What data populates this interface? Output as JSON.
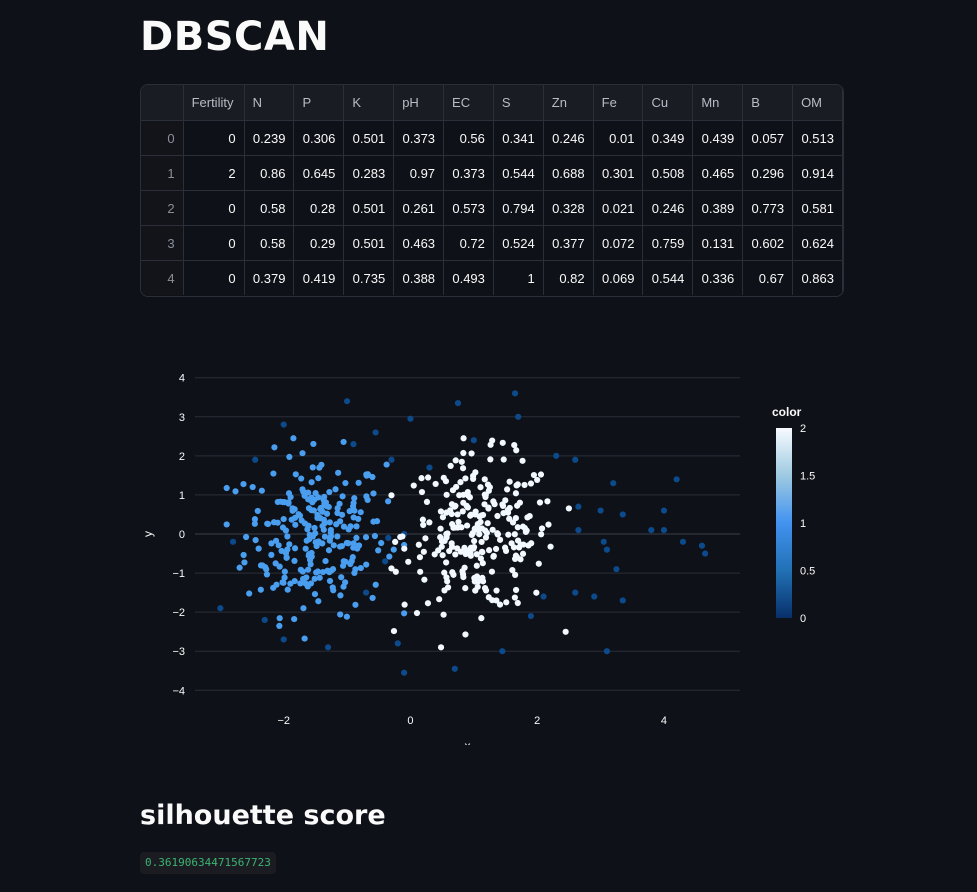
{
  "page": {
    "title": "DBSCAN"
  },
  "table": {
    "columns": [
      "",
      "Fertility",
      "N",
      "P",
      "K",
      "pH",
      "EC",
      "S",
      "Zn",
      "Fe",
      "Cu",
      "Mn",
      "B",
      "OM"
    ],
    "rows": [
      [
        "0",
        "0",
        "0.239",
        "0.306",
        "0.501",
        "0.373",
        "0.56",
        "0.341",
        "0.246",
        "0.01",
        "0.349",
        "0.439",
        "0.057",
        "0.513"
      ],
      [
        "1",
        "2",
        "0.86",
        "0.645",
        "0.283",
        "0.97",
        "0.373",
        "0.544",
        "0.688",
        "0.301",
        "0.508",
        "0.465",
        "0.296",
        "0.914"
      ],
      [
        "2",
        "0",
        "0.58",
        "0.28",
        "0.501",
        "0.261",
        "0.573",
        "0.794",
        "0.328",
        "0.021",
        "0.246",
        "0.389",
        "0.773",
        "0.581"
      ],
      [
        "3",
        "0",
        "0.58",
        "0.29",
        "0.501",
        "0.463",
        "0.72",
        "0.524",
        "0.377",
        "0.072",
        "0.759",
        "0.131",
        "0.602",
        "0.624"
      ],
      [
        "4",
        "0",
        "0.379",
        "0.419",
        "0.735",
        "0.388",
        "0.493",
        "1",
        "0.82",
        "0.069",
        "0.544",
        "0.336",
        "0.67",
        "0.863"
      ]
    ]
  },
  "chart_data": {
    "type": "scatter",
    "xlabel": "x",
    "ylabel": "y",
    "xlim": [
      -3.4,
      5.2
    ],
    "ylim": [
      -4.3,
      4.3
    ],
    "x_ticks": [
      -2,
      0,
      2,
      4
    ],
    "y_ticks": [
      -4,
      -3,
      -2,
      -1,
      0,
      1,
      2,
      3,
      4
    ],
    "grid": true,
    "colorbar": {
      "title": "color",
      "range": [
        0,
        2
      ],
      "ticks": [
        0,
        0.5,
        1,
        1.5,
        2
      ],
      "colors": [
        "#08306b",
        "#2171b5",
        "#4292f0",
        "#9ecae1",
        "#f7fbff"
      ]
    },
    "clusters": [
      {
        "label": 1,
        "color": "#4a9ef0",
        "center": [
          -1.5,
          0.0
        ],
        "spread": [
          0.55,
          1.2
        ]
      },
      {
        "label": 2,
        "color": "#f2f8ff",
        "center": [
          1.1,
          0.0
        ],
        "spread": [
          0.6,
          1.15
        ]
      },
      {
        "label": 0,
        "color": "#0d4a8c",
        "note_points": "outliers"
      }
    ],
    "outliers": [
      [
        -3.0,
        -1.9
      ],
      [
        -2.8,
        -0.2
      ],
      [
        -2.45,
        1.9
      ],
      [
        -2.3,
        -2.2
      ],
      [
        -2.0,
        2.8
      ],
      [
        -2.0,
        -2.7
      ],
      [
        -1.3,
        -2.9
      ],
      [
        -1.0,
        3.4
      ],
      [
        -0.7,
        -1.5
      ],
      [
        -0.9,
        2.3
      ],
      [
        -0.55,
        2.6
      ],
      [
        -0.3,
        1.9
      ],
      [
        -0.1,
        0.0
      ],
      [
        -0.4,
        -0.7
      ],
      [
        -0.2,
        -2.8
      ],
      [
        0.0,
        2.95
      ],
      [
        -0.1,
        -3.55
      ],
      [
        0.3,
        1.7
      ],
      [
        0.7,
        -3.45
      ],
      [
        0.75,
        3.35
      ],
      [
        1.0,
        2.4
      ],
      [
        1.45,
        -3.0
      ],
      [
        1.65,
        3.6
      ],
      [
        1.7,
        3.0
      ],
      [
        1.9,
        -2.1
      ],
      [
        2.1,
        -1.6
      ],
      [
        2.3,
        2.0
      ],
      [
        2.6,
        1.9
      ],
      [
        2.6,
        -1.5
      ],
      [
        2.65,
        0.1
      ],
      [
        2.65,
        0.7
      ],
      [
        2.9,
        -1.6
      ],
      [
        3.0,
        0.6
      ],
      [
        3.05,
        -0.2
      ],
      [
        3.1,
        -0.4
      ],
      [
        3.1,
        -3.0
      ],
      [
        3.2,
        1.3
      ],
      [
        3.25,
        -0.9
      ],
      [
        3.35,
        -1.7
      ],
      [
        3.35,
        0.5
      ],
      [
        3.8,
        0.1
      ],
      [
        4.0,
        0.6
      ],
      [
        4.0,
        0.1
      ],
      [
        4.2,
        1.4
      ],
      [
        4.3,
        -0.2
      ],
      [
        4.6,
        -0.3
      ],
      [
        4.65,
        -0.5
      ],
      [
        -0.35,
        -0.1
      ]
    ]
  },
  "metric": {
    "heading": "silhouette score",
    "value": "0.36190634471567723"
  }
}
